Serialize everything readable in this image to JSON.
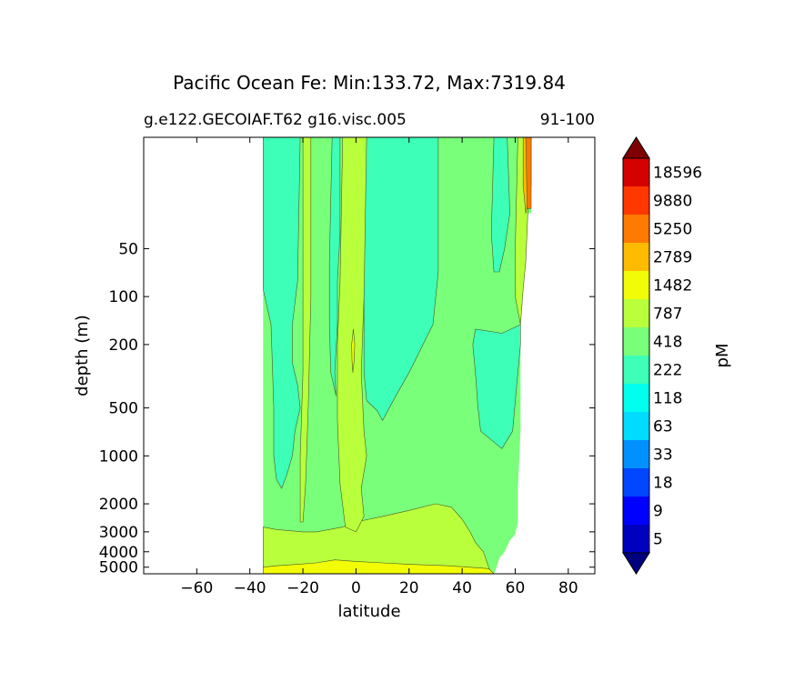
{
  "chart_data": {
    "type": "heatmap",
    "subtype": "filled-contour section",
    "title": "Pacific Ocean Fe: Min:133.72, Max:7319.84",
    "subtitle_left": "g.e122.GECOIAF.T62 g16.visc.005",
    "subtitle_right": "91-100",
    "xlabel": "latitude",
    "ylabel": "depth (m)",
    "xlim": [
      -80,
      90
    ],
    "ylim": [
      5500,
      10
    ],
    "y_scale": "log",
    "x_ticks": [
      -60,
      -40,
      -20,
      0,
      20,
      40,
      60,
      80
    ],
    "x_tick_labels": [
      "−60",
      "−40",
      "−20",
      "0",
      "20",
      "40",
      "60",
      "80"
    ],
    "y_ticks": [
      50,
      100,
      200,
      500,
      1000,
      2000,
      3000,
      4000,
      5000
    ],
    "y_tick_labels": [
      "50",
      "100",
      "200",
      "500",
      "1000",
      "2000",
      "3000",
      "4000",
      "5000"
    ],
    "data_extent": {
      "lat_min": -35,
      "south_boundary": [
        [
          10,
          -35
        ],
        [
          5500,
          -35
        ]
      ],
      "north_boundary": [
        [
          10,
          66
        ],
        [
          30,
          66
        ],
        [
          30,
          64
        ],
        [
          60,
          64
        ],
        [
          90,
          63
        ],
        [
          150,
          62
        ],
        [
          700,
          62
        ],
        [
          1600,
          61
        ],
        [
          2600,
          61
        ],
        [
          3100,
          60
        ],
        [
          3400,
          58
        ],
        [
          4000,
          56
        ],
        [
          4400,
          54
        ],
        [
          5000,
          53
        ],
        [
          5500,
          52
        ]
      ]
    },
    "colorbar": {
      "label": "pM",
      "extend": "both",
      "levels": [
        5,
        9,
        18,
        33,
        63,
        118,
        222,
        418,
        787,
        1482,
        2789,
        5250,
        9880,
        18596
      ],
      "level_labels": [
        "5",
        "9",
        "18",
        "33",
        "63",
        "118",
        "222",
        "418",
        "787",
        "1482",
        "2789",
        "5250",
        "9880",
        "18596"
      ],
      "colors": [
        "#00007f",
        "#0000bf",
        "#0000ff",
        "#0047ff",
        "#0091ff",
        "#00dcff",
        "#00ffee",
        "#3dffb8",
        "#79ff7a",
        "#b9ff3c",
        "#f1fc06",
        "#ffbb00",
        "#ff7a00",
        "#ff3800",
        "#d50000",
        "#7f0000"
      ]
    },
    "regions": [
      {
        "level_range": [
          222,
          418
        ],
        "color": "#3dffb8",
        "description": "western upper water",
        "polygon": [
          [
            10,
            -35
          ],
          [
            10,
            -21
          ],
          [
            80,
            -22
          ],
          [
            150,
            -24
          ],
          [
            260,
            -24
          ],
          [
            360,
            -22
          ],
          [
            500,
            -21
          ],
          [
            700,
            -23
          ],
          [
            1000,
            -24
          ],
          [
            1300,
            -26
          ],
          [
            1600,
            -28
          ],
          [
            1400,
            -30
          ],
          [
            1000,
            -31
          ],
          [
            500,
            -31
          ],
          [
            150,
            -32
          ],
          [
            90,
            -35
          ]
        ]
      },
      {
        "level_range": [
          222,
          418
        ],
        "color": "#3dffb8",
        "description": "central tongue",
        "polygon": [
          [
            10,
            -9
          ],
          [
            10,
            -6
          ],
          [
            40,
            -6
          ],
          [
            80,
            -7
          ],
          [
            150,
            -7
          ],
          [
            300,
            -8
          ],
          [
            420,
            -7.5
          ],
          [
            300,
            -9.5
          ],
          [
            150,
            -10
          ],
          [
            60,
            -10
          ]
        ]
      },
      {
        "level_range": [
          222,
          418
        ],
        "color": "#3dffb8",
        "description": "north-central upper water",
        "polygon": [
          [
            10,
            3
          ],
          [
            10,
            31
          ],
          [
            70,
            31
          ],
          [
            150,
            29
          ],
          [
            300,
            20
          ],
          [
            420,
            15
          ],
          [
            600,
            10
          ],
          [
            520,
            8
          ],
          [
            450,
            4
          ],
          [
            300,
            3
          ],
          [
            150,
            3
          ],
          [
            60,
            3
          ]
        ]
      },
      {
        "level_range": [
          222,
          418
        ],
        "color": "#3dffb8",
        "description": "north plume",
        "polygon": [
          [
            10,
            52
          ],
          [
            10,
            57
          ],
          [
            30,
            58
          ],
          [
            50,
            56
          ],
          [
            70,
            54
          ],
          [
            70,
            52
          ],
          [
            40,
            51
          ]
        ]
      },
      {
        "level_range": [
          222,
          418
        ],
        "color": "#3dffb8",
        "description": "subarctic column",
        "polygon": [
          [
            160,
            45
          ],
          [
            200,
            44
          ],
          [
            300,
            45
          ],
          [
            500,
            46
          ],
          [
            700,
            47
          ],
          [
            900,
            55
          ],
          [
            700,
            59
          ],
          [
            300,
            61
          ],
          [
            200,
            62
          ],
          [
            150,
            62
          ],
          [
            170,
            55
          ]
        ]
      },
      {
        "level_range": [
          418,
          787
        ],
        "color": "#b9ff3c",
        "description": "deep water",
        "polygon": [
          [
            5500,
            -35
          ],
          [
            2800,
            -35
          ],
          [
            2900,
            -30
          ],
          [
            3000,
            -20
          ],
          [
            3000,
            -15
          ],
          [
            2900,
            -10
          ],
          [
            2800,
            -5
          ],
          [
            2600,
            0
          ],
          [
            2400,
            10
          ],
          [
            2200,
            20
          ],
          [
            2000,
            30
          ],
          [
            2100,
            36
          ],
          [
            2500,
            40
          ],
          [
            3000,
            43
          ],
          [
            3500,
            45
          ],
          [
            4000,
            48
          ],
          [
            5000,
            50
          ],
          [
            5500,
            51
          ]
        ]
      },
      {
        "level_range": [
          418,
          787
        ],
        "color": "#b9ff3c",
        "description": "equatorial column",
        "polygon": [
          [
            10,
            -5
          ],
          [
            10,
            4
          ],
          [
            100,
            3
          ],
          [
            300,
            2
          ],
          [
            700,
            3
          ],
          [
            1000,
            4
          ],
          [
            1600,
            2
          ],
          [
            2400,
            3
          ],
          [
            3000,
            0
          ],
          [
            2800,
            -4
          ],
          [
            1500,
            -6
          ],
          [
            600,
            -7
          ],
          [
            200,
            -7
          ],
          [
            80,
            -6
          ]
        ]
      },
      {
        "level_range": [
          418,
          787
        ],
        "color": "#b9ff3c",
        "description": "western column",
        "polygon": [
          [
            10,
            -20
          ],
          [
            10,
            -17
          ],
          [
            100,
            -17
          ],
          [
            500,
            -18
          ],
          [
            1500,
            -19
          ],
          [
            2600,
            -20
          ],
          [
            2600,
            -21
          ],
          [
            1000,
            -21
          ],
          [
            300,
            -20
          ],
          [
            100,
            -20
          ]
        ]
      },
      {
        "level_range": [
          418,
          787
        ],
        "color": "#b9ff3c",
        "description": "northern coast column",
        "polygon": [
          [
            10,
            61
          ],
          [
            10,
            66
          ],
          [
            60,
            64
          ],
          [
            90,
            63
          ],
          [
            150,
            62
          ],
          [
            100,
            60
          ],
          [
            50,
            60
          ]
        ]
      },
      {
        "level_range": [
          787,
          1482
        ],
        "color": "#f1fc06",
        "description": "equatorial high",
        "polygon": [
          [
            160,
            -1
          ],
          [
            200,
            -0.5
          ],
          [
            250,
            -0.7
          ],
          [
            300,
            -1.2
          ],
          [
            250,
            -1.5
          ],
          [
            200,
            -1.6
          ]
        ]
      },
      {
        "level_range": [
          787,
          1482
        ],
        "color": "#f1fc06",
        "description": "bottom layer",
        "polygon": [
          [
            5500,
            -35
          ],
          [
            5000,
            -35
          ],
          [
            4900,
            -30
          ],
          [
            4800,
            -22
          ],
          [
            4700,
            -15
          ],
          [
            4500,
            -8
          ],
          [
            4600,
            0
          ],
          [
            4700,
            10
          ],
          [
            4800,
            20
          ],
          [
            4900,
            35
          ],
          [
            5100,
            50
          ],
          [
            5500,
            52
          ]
        ]
      },
      {
        "level_range": [
          1482,
          2789
        ],
        "color": "#ffbb00",
        "description": "northern surface patch",
        "polygon": [
          [
            10,
            63
          ],
          [
            10,
            66
          ],
          [
            20,
            66
          ],
          [
            30,
            64
          ],
          [
            20,
            63
          ]
        ]
      },
      {
        "level_range": [
          2789,
          5250
        ],
        "color": "#ff7a00",
        "description": "northern surface core",
        "polygon": [
          [
            10,
            64
          ],
          [
            10,
            66
          ],
          [
            28,
            66
          ],
          [
            28,
            64.5
          ]
        ]
      }
    ]
  }
}
